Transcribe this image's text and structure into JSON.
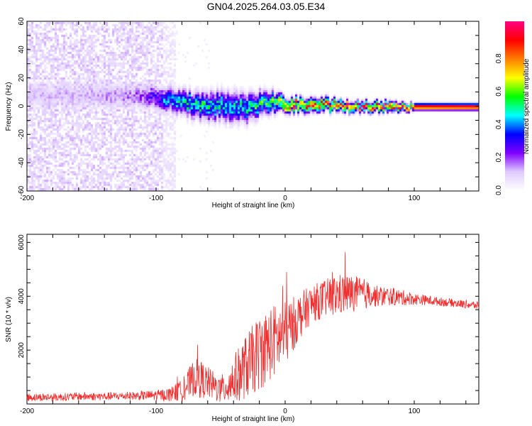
{
  "title": "GN04.2025.264.03.05.E34",
  "chart_data": [
    {
      "type": "heatmap",
      "title": "GN04.2025.264.03.05.E34",
      "xlabel": "Height of straight line (km)",
      "ylabel": "Frequency (Hz)",
      "xlim": [
        -200,
        150
      ],
      "ylim": [
        -60,
        60
      ],
      "xticks": [
        "-200",
        "-100",
        "0",
        "100"
      ],
      "yticks": [
        "-60",
        "-40",
        "-20",
        "0",
        "20",
        "40",
        "60"
      ],
      "colorbar": {
        "label": "Normalized spectral amplitude",
        "range": [
          0,
          1
        ],
        "ticks": [
          "0.0",
          "0.2",
          "0.4",
          "0.6",
          "0.8"
        ],
        "colormap": [
          "#ffffff",
          "#e0ccff",
          "#8000ff",
          "#0000ff",
          "#00ffff",
          "#00ff00",
          "#ffff00",
          "#ff8000",
          "#ff0000",
          "#ff0080"
        ]
      },
      "ridge_profile": {
        "x": [
          -200,
          -150,
          -110,
          -90,
          -80,
          -60,
          -40,
          -30,
          -20,
          -10,
          0,
          20,
          50,
          80,
          100,
          150
        ],
        "center_freq_hz": [
          8,
          9,
          8,
          6,
          3,
          1,
          1,
          -1,
          3,
          4,
          2,
          2,
          1,
          0.5,
          0.5,
          0.5
        ],
        "peak_amplitude": [
          0.12,
          0.13,
          0.2,
          0.45,
          0.5,
          0.5,
          0.45,
          0.5,
          0.55,
          0.6,
          0.85,
          0.85,
          0.85,
          0.9,
          0.95,
          1.0
        ],
        "bandwidth_hz": [
          8,
          8,
          7,
          7,
          7,
          8,
          9,
          8,
          7,
          6,
          4,
          4,
          3,
          3,
          2,
          2
        ]
      },
      "background_noise_until_x": -85
    },
    {
      "type": "line",
      "xlabel": "Height of straight line (km)",
      "ylabel": "SNR (10 * v/v)",
      "xlim": [
        -200,
        150
      ],
      "ylim": [
        0,
        6300
      ],
      "xticks": [
        "-200",
        "-100",
        "0",
        "100"
      ],
      "yticks": [
        "2000",
        "4000",
        "6000"
      ],
      "color": "#f03030",
      "series": [
        {
          "name": "SNR",
          "x": [
            -200,
            -180,
            -160,
            -140,
            -120,
            -100,
            -90,
            -80,
            -70,
            -65,
            -60,
            -50,
            -40,
            -30,
            -20,
            -10,
            0,
            10,
            20,
            30,
            40,
            50,
            60,
            70,
            80,
            90,
            100,
            110,
            120,
            130,
            140,
            150
          ],
          "y": [
            250,
            250,
            280,
            280,
            300,
            320,
            350,
            500,
            1000,
            900,
            800,
            500,
            900,
            1400,
            1900,
            2300,
            2600,
            3200,
            3700,
            3900,
            4050,
            4100,
            4100,
            4000,
            4000,
            3950,
            3900,
            3850,
            3800,
            3750,
            3700,
            3650
          ],
          "noise_amplitude": [
            150,
            150,
            150,
            150,
            150,
            200,
            250,
            400,
            700,
            700,
            600,
            500,
            900,
            1200,
            1400,
            1400,
            1200,
            900,
            700,
            700,
            800,
            700,
            600,
            400,
            350,
            300,
            220,
            180,
            160,
            150,
            150,
            150
          ]
        }
      ]
    }
  ]
}
